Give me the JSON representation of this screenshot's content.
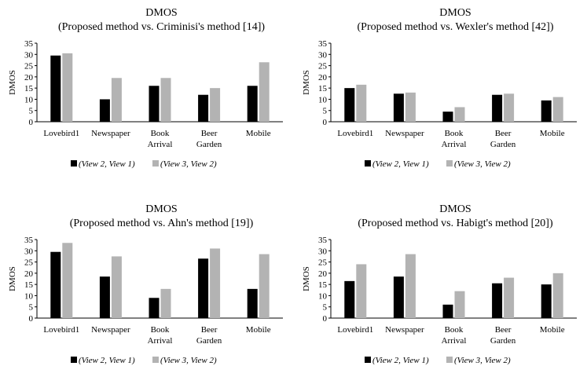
{
  "colors": {
    "series1": "#000000",
    "series2": "#b3b3b3",
    "axis": "#000000"
  },
  "chart_data": [
    {
      "type": "bar",
      "title": "DMOS",
      "subtitle": "(Proposed method vs. Criminisi's method [14])",
      "ylabel": "DMOS",
      "ylim": [
        0,
        35
      ],
      "yticks": [
        "0",
        "5",
        "10",
        "15",
        "20",
        "25",
        "30",
        "35"
      ],
      "categories": [
        [
          "Lovebird1"
        ],
        [
          "Newspaper"
        ],
        [
          "Book",
          "Arrival"
        ],
        [
          "Beer",
          "Garden"
        ],
        [
          "Mobile"
        ]
      ],
      "series": [
        {
          "name": "(View 2, View 1)",
          "values": [
            29.5,
            10,
            16,
            12,
            16
          ]
        },
        {
          "name": "(View 3, View 2)",
          "values": [
            30.5,
            19.5,
            19.5,
            15,
            26.5
          ]
        }
      ],
      "legend": "bottom"
    },
    {
      "type": "bar",
      "title": "DMOS",
      "subtitle": "(Proposed method vs. Wexler's method [42])",
      "ylabel": "DMOS",
      "ylim": [
        0,
        35
      ],
      "yticks": [
        "0",
        "5",
        "10",
        "15",
        "20",
        "25",
        "30",
        "35"
      ],
      "categories": [
        [
          "Lovebird1"
        ],
        [
          "Newspaper"
        ],
        [
          "Book",
          "Arrival"
        ],
        [
          "Beer",
          "Garden"
        ],
        [
          "Mobile"
        ]
      ],
      "series": [
        {
          "name": "(View 2, View 1)",
          "values": [
            15,
            12.5,
            4.5,
            12,
            9.5
          ]
        },
        {
          "name": "(View 3, View 2)",
          "values": [
            16.5,
            13,
            6.5,
            12.5,
            11
          ]
        }
      ],
      "legend": "bottom"
    },
    {
      "type": "bar",
      "title": "DMOS",
      "subtitle": "(Proposed method vs. Ahn's method [19])",
      "ylabel": "DMOS",
      "ylim": [
        0,
        35
      ],
      "yticks": [
        "0",
        "5",
        "10",
        "15",
        "20",
        "25",
        "30",
        "35"
      ],
      "categories": [
        [
          "Lovebird1"
        ],
        [
          "Newspaper"
        ],
        [
          "Book",
          "Arrival"
        ],
        [
          "Beer",
          "Garden"
        ],
        [
          "Mobile"
        ]
      ],
      "series": [
        {
          "name": "(View 2, View 1)",
          "values": [
            29.5,
            18.5,
            9,
            26.5,
            13
          ]
        },
        {
          "name": "(View 3, View 2)",
          "values": [
            33.5,
            27.5,
            13,
            31,
            28.5
          ]
        }
      ],
      "legend": "bottom"
    },
    {
      "type": "bar",
      "title": "DMOS",
      "subtitle": "(Proposed method vs. Habigt's method [20])",
      "ylabel": "DMOS",
      "ylim": [
        0,
        35
      ],
      "yticks": [
        "0",
        "5",
        "10",
        "15",
        "20",
        "25",
        "30",
        "35"
      ],
      "categories": [
        [
          "Lovebird1"
        ],
        [
          "Newspaper"
        ],
        [
          "Book",
          "Arrival"
        ],
        [
          "Beer",
          "Garden"
        ],
        [
          "Mobile"
        ]
      ],
      "series": [
        {
          "name": "(View 2, View 1)",
          "values": [
            16.5,
            18.5,
            6,
            15.5,
            15
          ]
        },
        {
          "name": "(View 3, View 2)",
          "values": [
            24,
            28.5,
            12,
            18,
            20
          ]
        }
      ],
      "legend": "bottom"
    }
  ]
}
